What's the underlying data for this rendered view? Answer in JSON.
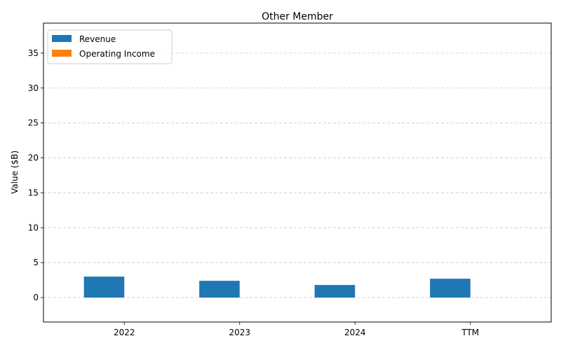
{
  "chart_data": {
    "type": "bar",
    "title": "Other Member",
    "xlabel": "",
    "ylabel": "Value ($B)",
    "categories": [
      "2022",
      "2023",
      "2024",
      "TTM"
    ],
    "series": [
      {
        "name": "Revenue",
        "values": [
          3.0,
          2.4,
          1.8,
          2.7
        ],
        "color": "#1f77b4"
      },
      {
        "name": "Operating Income",
        "values": [
          0,
          0,
          0,
          0
        ],
        "color": "#ff7f0e"
      }
    ],
    "ylim": [
      -3.5,
      39.3
    ],
    "yticks": [
      0,
      5,
      10,
      15,
      20,
      25,
      30,
      35
    ],
    "grid": "y-dashed",
    "legend_position": "top-left"
  }
}
